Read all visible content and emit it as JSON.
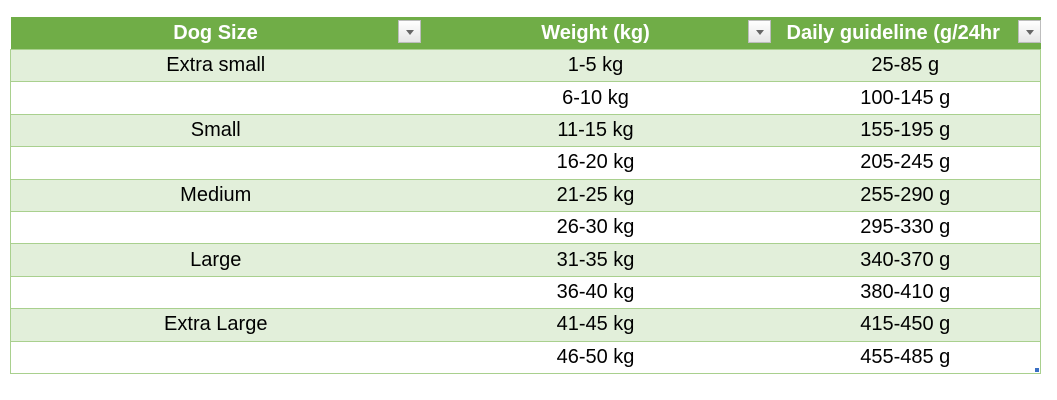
{
  "table": {
    "header_color": "#70AD47",
    "band_color": "#E2EFDA",
    "columns": [
      "Dog Size",
      "Weight (kg)",
      "Daily guideline (g/24hr"
    ],
    "rows": [
      [
        "Extra small",
        "1-5 kg",
        "25-85 g"
      ],
      [
        "",
        "6-10 kg",
        "100-145 g"
      ],
      [
        "Small",
        "11-15 kg",
        "155-195 g"
      ],
      [
        "",
        "16-20 kg",
        "205-245 g"
      ],
      [
        "Medium",
        "21-25 kg",
        "255-290 g"
      ],
      [
        "",
        "26-30 kg",
        "295-330 g"
      ],
      [
        "Large",
        "31-35 kg",
        "340-370 g"
      ],
      [
        "",
        "36-40 kg",
        "380-410 g"
      ],
      [
        "Extra Large",
        "41-45 kg",
        "415-450 g"
      ],
      [
        "",
        "46-50 kg",
        "455-485 g"
      ]
    ]
  }
}
